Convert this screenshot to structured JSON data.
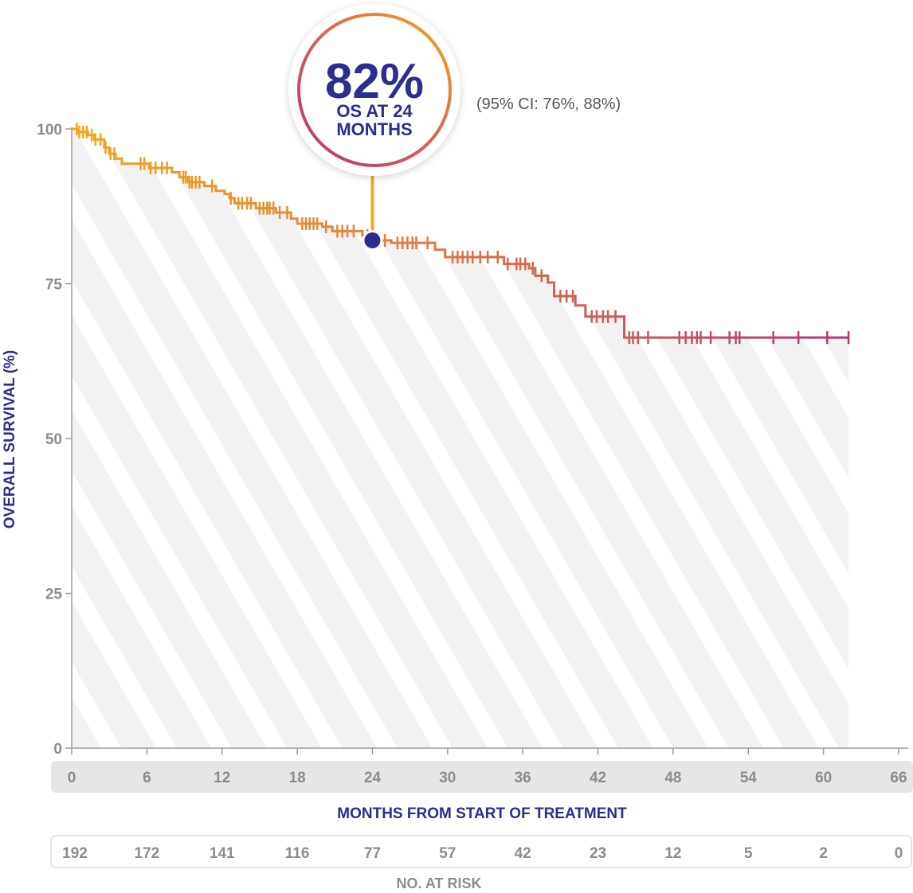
{
  "chart_data": {
    "type": "line",
    "subtype": "kaplan-meier step curve",
    "ylabel": "OVERALL SURVIVAL (%)",
    "xlabel": "MONTHS FROM START OF TREATMENT",
    "ylim": [
      0,
      100
    ],
    "xlim": [
      0,
      66
    ],
    "yticks": [
      0,
      25,
      50,
      75,
      100
    ],
    "xticks": [
      0,
      6,
      12,
      18,
      24,
      30,
      36,
      42,
      48,
      54,
      60,
      66
    ],
    "series": [
      {
        "name": "Overall survival",
        "steps": [
          [
            0,
            100
          ],
          [
            0.5,
            99.5
          ],
          [
            1.3,
            99
          ],
          [
            1.8,
            98.3
          ],
          [
            2.6,
            97
          ],
          [
            3.0,
            96
          ],
          [
            3.5,
            95.2
          ],
          [
            4.0,
            94.4
          ],
          [
            5.0,
            94.4
          ],
          [
            6.2,
            93.7
          ],
          [
            8.0,
            93.0
          ],
          [
            8.6,
            92.2
          ],
          [
            9.3,
            91.4
          ],
          [
            10.6,
            90.8
          ],
          [
            11.5,
            90.0
          ],
          [
            12.2,
            89.5
          ],
          [
            12.6,
            88.8
          ],
          [
            13.0,
            88.0
          ],
          [
            14.5,
            88.0
          ],
          [
            14.7,
            87.2
          ],
          [
            16.3,
            86.5
          ],
          [
            17.5,
            85.5
          ],
          [
            18.0,
            84.7
          ],
          [
            20.0,
            84.2
          ],
          [
            20.8,
            83.5
          ],
          [
            23.2,
            82.8
          ],
          [
            24.0,
            82.0
          ],
          [
            25.5,
            81.6
          ],
          [
            28.0,
            81.6
          ],
          [
            29.0,
            80.5
          ],
          [
            29.8,
            79.3
          ],
          [
            34.5,
            78.2
          ],
          [
            35.0,
            78.2
          ],
          [
            36.5,
            77.5
          ],
          [
            37.0,
            76.3
          ],
          [
            38.0,
            75.2
          ],
          [
            38.5,
            73.0
          ],
          [
            40.2,
            71.5
          ],
          [
            41.0,
            69.7
          ],
          [
            43.8,
            69.7
          ],
          [
            44.1,
            66.3
          ],
          [
            62.0,
            66.3
          ]
        ],
        "censor_times": [
          0.4,
          0.6,
          0.9,
          1.2,
          1.6,
          1.9,
          2.3,
          2.7,
          3.1,
          3.4,
          5.5,
          5.8,
          6.3,
          6.7,
          7.2,
          7.6,
          8.9,
          9.1,
          9.4,
          9.6,
          9.9,
          10.2,
          11.2,
          12.7,
          13.3,
          13.6,
          14.0,
          14.3,
          15.0,
          15.3,
          15.6,
          15.8,
          16.1,
          16.6,
          17.2,
          18.4,
          18.7,
          19.0,
          19.3,
          19.6,
          20.3,
          21.2,
          21.6,
          22.0,
          22.5,
          23.6,
          25.0,
          26.0,
          26.4,
          26.8,
          27.2,
          27.5,
          28.4,
          30.4,
          30.8,
          31.2,
          31.6,
          32.0,
          32.6,
          33.2,
          34.0,
          34.8,
          35.5,
          35.8,
          36.2,
          36.8,
          37.5,
          39.0,
          39.5,
          40.0,
          41.5,
          41.9,
          42.4,
          42.8,
          43.4,
          44.5,
          44.8,
          45.2,
          46.0,
          48.5,
          49.0,
          49.5,
          49.9,
          50.2,
          51.0,
          52.5,
          53.0,
          53.3,
          56.0,
          58.0,
          60.3,
          62.0
        ]
      }
    ],
    "annotation": {
      "time": 24,
      "value": 82,
      "headline": "82%",
      "line1": "OS AT 24",
      "line2": "MONTHS",
      "ci": "(95% CI: 76%, 88%)"
    },
    "risk_table": {
      "title": "NO. AT RISK",
      "counts": [
        "192",
        "172",
        "141",
        "116",
        "77",
        "57",
        "42",
        "23",
        "12",
        "5",
        "2",
        "0"
      ]
    },
    "colors": {
      "curve_start": "#f2a81d",
      "curve_mid": "#e07a3e",
      "curve_end": "#b5347a",
      "marker": "#2b2d8f",
      "axis_title": "#2b2d8f",
      "tick_text": "#8c8c8c",
      "fill": "#f2f2f2"
    }
  }
}
